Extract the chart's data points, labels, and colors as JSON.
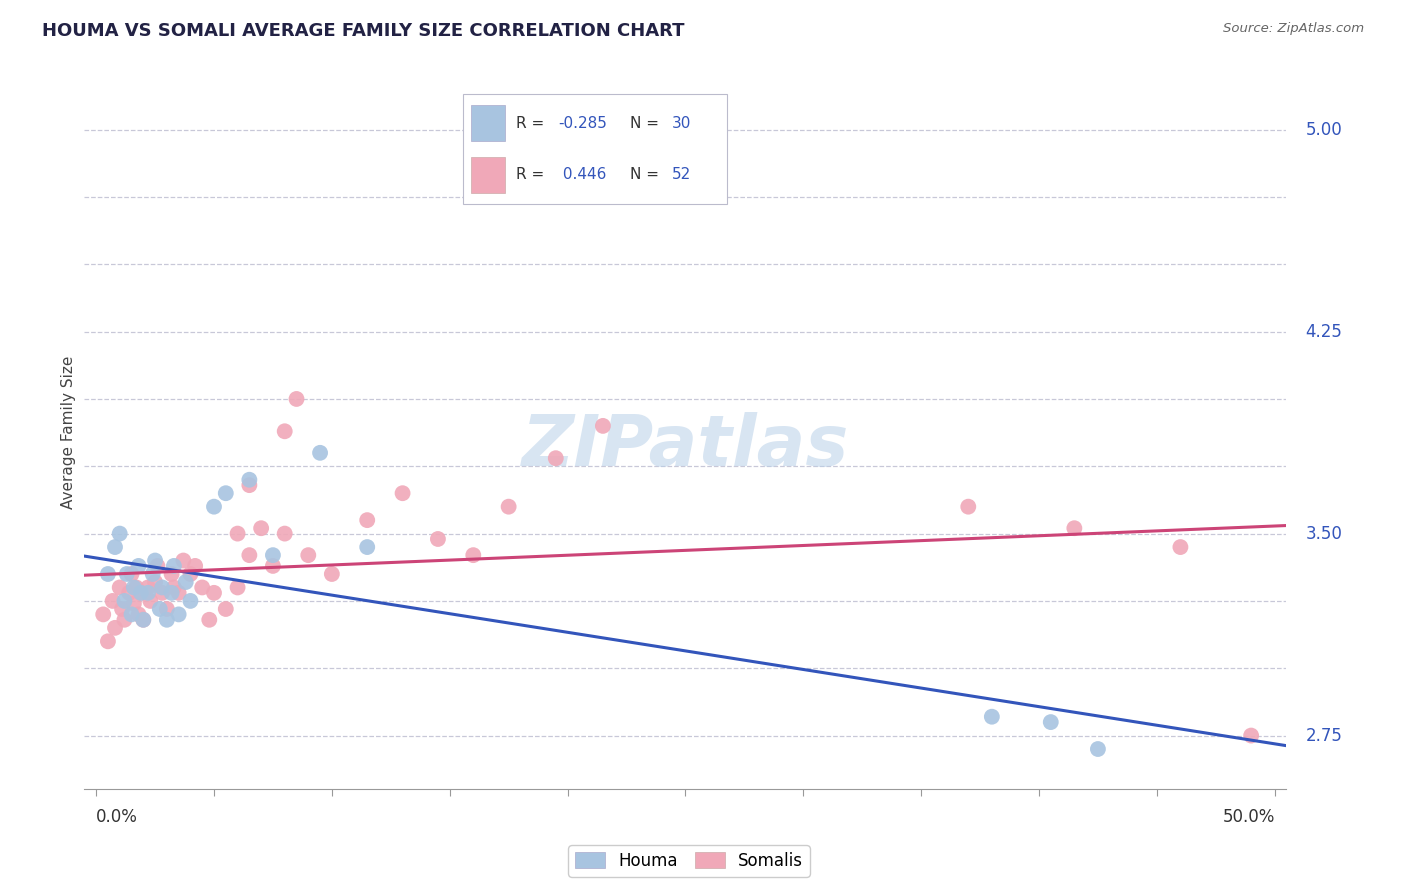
{
  "title": "HOUMA VS SOMALI AVERAGE FAMILY SIZE CORRELATION CHART",
  "source": "Source: ZipAtlas.com",
  "ylabel": "Average Family Size",
  "watermark": "ZIPatlas",
  "ylim": [
    2.55,
    5.2
  ],
  "xlim": [
    -0.005,
    0.505
  ],
  "background_color": "#ffffff",
  "grid_color": "#c8c8d8",
  "houma_color": "#a8c4e0",
  "somali_color": "#f0a8b8",
  "houma_line_color": "#3355bb",
  "somali_line_color": "#cc4477",
  "yticks_minor": [
    2.75,
    3.0,
    3.25,
    3.5,
    3.75,
    4.0,
    4.25,
    4.5,
    4.75,
    5.0
  ],
  "ytick_labels_show": [
    2.75,
    3.5,
    4.25,
    5.0
  ],
  "houma_x": [
    0.005,
    0.008,
    0.01,
    0.012,
    0.013,
    0.015,
    0.016,
    0.018,
    0.019,
    0.02,
    0.022,
    0.024,
    0.025,
    0.027,
    0.028,
    0.03,
    0.032,
    0.033,
    0.035,
    0.038,
    0.04,
    0.05,
    0.055,
    0.065,
    0.075,
    0.095,
    0.115,
    0.38,
    0.405,
    0.425
  ],
  "houma_y": [
    3.35,
    3.45,
    3.5,
    3.25,
    3.35,
    3.2,
    3.3,
    3.38,
    3.28,
    3.18,
    3.28,
    3.35,
    3.4,
    3.22,
    3.3,
    3.18,
    3.28,
    3.38,
    3.2,
    3.32,
    3.25,
    3.6,
    3.65,
    3.7,
    3.42,
    3.8,
    3.45,
    2.82,
    2.8,
    2.7
  ],
  "somali_x": [
    0.003,
    0.005,
    0.007,
    0.008,
    0.01,
    0.011,
    0.012,
    0.014,
    0.015,
    0.016,
    0.017,
    0.018,
    0.019,
    0.02,
    0.022,
    0.023,
    0.025,
    0.026,
    0.028,
    0.03,
    0.032,
    0.033,
    0.035,
    0.037,
    0.04,
    0.042,
    0.045,
    0.048,
    0.05,
    0.055,
    0.06,
    0.065,
    0.07,
    0.075,
    0.08,
    0.09,
    0.1,
    0.115,
    0.13,
    0.145,
    0.16,
    0.175,
    0.195,
    0.215,
    0.06,
    0.065,
    0.08,
    0.085,
    0.37,
    0.415,
    0.46,
    0.49
  ],
  "somali_y": [
    3.2,
    3.1,
    3.25,
    3.15,
    3.3,
    3.22,
    3.18,
    3.28,
    3.35,
    3.24,
    3.3,
    3.2,
    3.28,
    3.18,
    3.3,
    3.25,
    3.32,
    3.38,
    3.28,
    3.22,
    3.35,
    3.3,
    3.28,
    3.4,
    3.35,
    3.38,
    3.3,
    3.18,
    3.28,
    3.22,
    3.3,
    3.42,
    3.52,
    3.38,
    3.5,
    3.42,
    3.35,
    3.55,
    3.65,
    3.48,
    3.42,
    3.6,
    3.78,
    3.9,
    3.5,
    3.68,
    3.88,
    4.0,
    3.6,
    3.52,
    3.45,
    2.75
  ]
}
